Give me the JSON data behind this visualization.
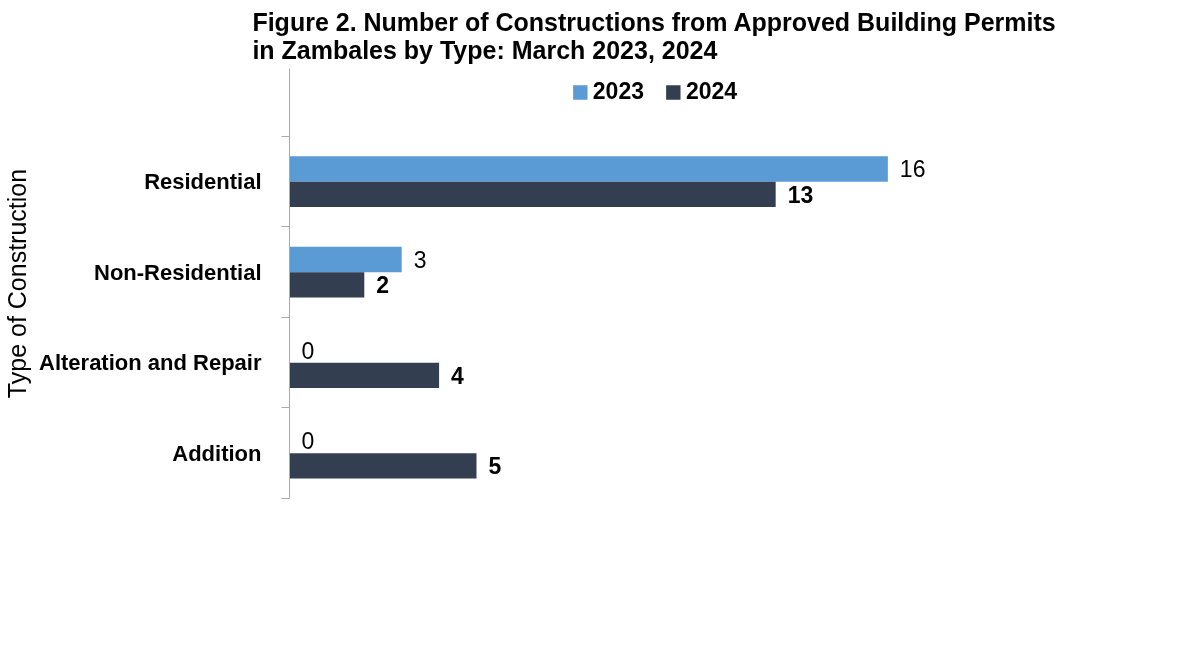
{
  "chart_data": {
    "type": "bar",
    "orientation": "horizontal",
    "title": "Figure 2. Number of Constructions from Approved Building Permits\nin Zambales by Type: March 2023, 2024",
    "ylabel": "Type of Construction",
    "categories": [
      "Residential",
      "Non-Residential",
      "Alteration and Repair",
      "Addition"
    ],
    "series": [
      {
        "name": "2023",
        "color": "#5b9bd5",
        "values": [
          16,
          3,
          0,
          0
        ]
      },
      {
        "name": "2024",
        "color": "#333f50",
        "values": [
          13,
          2,
          4,
          5
        ]
      }
    ],
    "data_labels": true,
    "legend": "top",
    "grid": false,
    "tick_labels": "y"
  }
}
